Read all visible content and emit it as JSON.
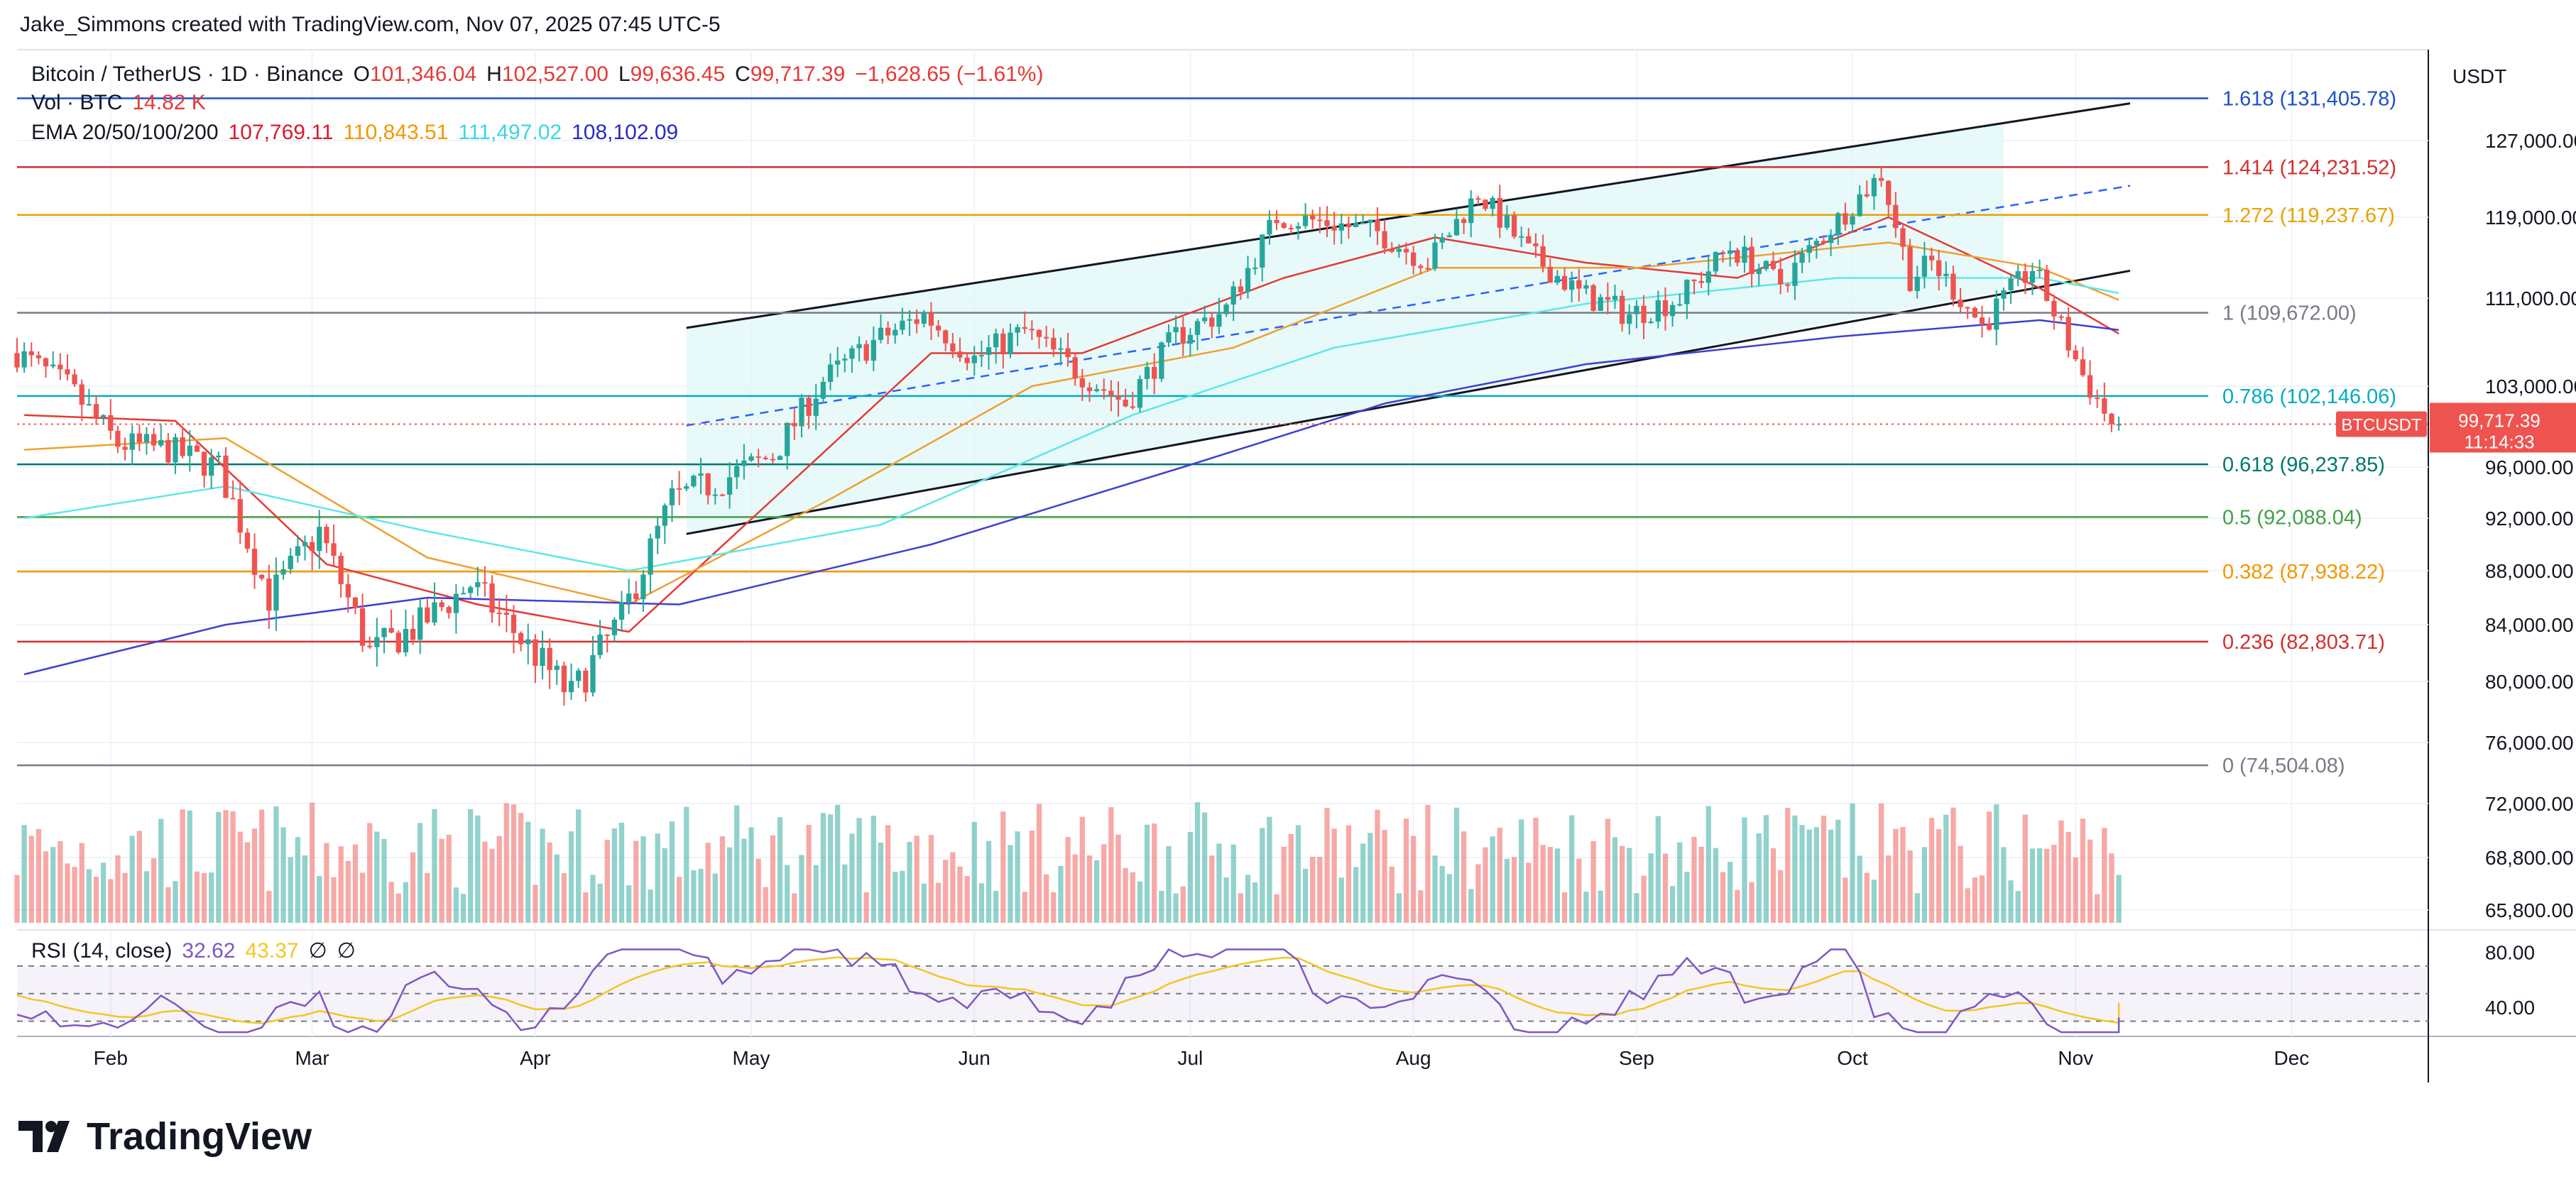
{
  "attribution": "Jake_Simmons created with TradingView.com, Nov 07, 2025 07:45 UTC-5",
  "header": {
    "symbol": "Bitcoin / TetherUS · 1D · Binance",
    "open_label": "O",
    "open": "101,346.04",
    "high_label": "H",
    "high": "102,527.00",
    "low_label": "L",
    "low": "99,636.45",
    "close_label": "C",
    "close": "99,717.39",
    "change": "−1,628.65 (−1.61%)",
    "vol_label": "Vol · BTC",
    "vol": "14.82 K",
    "ema_label": "EMA 20/50/100/200",
    "ema20": "107,769.11",
    "ema50": "110,843.51",
    "ema100": "111,497.02",
    "ema200": "108,102.09"
  },
  "rsi_header": {
    "label": "RSI (14, close)",
    "rsi": "32.62",
    "ma": "43.37",
    "extra1": "∅",
    "extra2": "∅"
  },
  "currency": "USDT",
  "last_price": {
    "ticker": "BTCUSDT",
    "price": "99,717.39",
    "countdown": "11:14:33"
  },
  "brand": "TradingView",
  "colors": {
    "up": "#26a69a",
    "down": "#ef5350",
    "ema20": "#e53935",
    "ema50": "#f0a030",
    "ema100": "#5ce8e8",
    "ema200": "#3f3fd0",
    "channel": "#e0f7f7"
  },
  "chart_data": {
    "type": "candlestick",
    "title": "Bitcoin / TetherUS · 1D · Binance",
    "x_ticks": [
      "Feb",
      "Mar",
      "Apr",
      "May",
      "Jun",
      "Jul",
      "Aug",
      "Sep",
      "Oct",
      "Nov",
      "Dec"
    ],
    "y_ticks": [
      "127,000.00",
      "119,000.00",
      "111,000.00",
      "103,000.00",
      "96,000.00",
      "92,000.00",
      "88,000.00",
      "84,000.00",
      "80,000.00",
      "76,000.00",
      "72,000.00",
      "68,800.00",
      "65,800.00"
    ],
    "y_ticks_values": [
      127000,
      119000,
      111000,
      103000,
      96000,
      92000,
      88000,
      84000,
      80000,
      76000,
      72000,
      68800,
      65800
    ],
    "x_range": [
      "2025-01-19",
      "2025-12-20"
    ],
    "fib_levels": [
      {
        "ratio": "1.618",
        "price": 131405.78,
        "label": "1.618 (131,405.78)",
        "color": "#1e50c8"
      },
      {
        "ratio": "1.414",
        "price": 124231.52,
        "label": "1.414 (124,231.52)",
        "color": "#d32f2f"
      },
      {
        "ratio": "1.272",
        "price": 119237.67,
        "label": "1.272 (119,237.67)",
        "color": "#e6a400"
      },
      {
        "ratio": "1",
        "price": 109672.0,
        "label": "1 (109,672.00)",
        "color": "#787b86"
      },
      {
        "ratio": "0.786",
        "price": 102146.06,
        "label": "0.786 (102,146.06)",
        "color": "#00acc1"
      },
      {
        "ratio": "0.618",
        "price": 96237.85,
        "label": "0.618 (96,237.85)",
        "color": "#00796b"
      },
      {
        "ratio": "0.5",
        "price": 92088.04,
        "label": "0.5 (92,088.04)",
        "color": "#43a047"
      },
      {
        "ratio": "0.382",
        "price": 87938.22,
        "label": "0.382 (87,938.22)",
        "color": "#f29800"
      },
      {
        "ratio": "0.236",
        "price": 82803.71,
        "label": "0.236 (82,803.71)",
        "color": "#d32f2f"
      },
      {
        "ratio": "0",
        "price": 74504.08,
        "label": "0 (74,504.08)",
        "color": "#787b86"
      }
    ],
    "channel": {
      "start_date": "2025-04-22",
      "end_date": "2025-10-22",
      "upper_start": 108300,
      "upper_end": 128900,
      "lower_start": 90800,
      "lower_end": 111700,
      "mid_start": 99600,
      "mid_end": 120300
    },
    "price_path": [
      [
        "2025-01-20",
        106000
      ],
      [
        "2025-01-27",
        103000
      ],
      [
        "2025-02-03",
        98000
      ],
      [
        "2025-02-10",
        97500
      ],
      [
        "2025-02-17",
        96000
      ],
      [
        "2025-02-24",
        86000
      ],
      [
        "2025-03-03",
        91000
      ],
      [
        "2025-03-10",
        82000
      ],
      [
        "2025-03-17",
        84000
      ],
      [
        "2025-03-24",
        87000
      ],
      [
        "2025-03-31",
        83000
      ],
      [
        "2025-04-07",
        79000
      ],
      [
        "2025-04-14",
        84500
      ],
      [
        "2025-04-21",
        93500
      ],
      [
        "2025-04-28",
        95000
      ],
      [
        "2025-05-05",
        97000
      ],
      [
        "2025-05-12",
        103500
      ],
      [
        "2025-05-19",
        107000
      ],
      [
        "2025-05-26",
        109500
      ],
      [
        "2025-06-02",
        105500
      ],
      [
        "2025-06-09",
        108000
      ],
      [
        "2025-06-16",
        104500
      ],
      [
        "2025-06-23",
        101500
      ],
      [
        "2025-06-30",
        107500
      ],
      [
        "2025-07-07",
        110000
      ],
      [
        "2025-07-14",
        119000
      ],
      [
        "2025-07-21",
        118500
      ],
      [
        "2025-07-28",
        117500
      ],
      [
        "2025-08-04",
        114500
      ],
      [
        "2025-08-11",
        121500
      ],
      [
        "2025-08-18",
        115500
      ],
      [
        "2025-08-25",
        111500
      ],
      [
        "2025-09-01",
        109500
      ],
      [
        "2025-09-08",
        111000
      ],
      [
        "2025-09-15",
        116000
      ],
      [
        "2025-09-22",
        112500
      ],
      [
        "2025-09-29",
        118000
      ],
      [
        "2025-10-06",
        123500
      ],
      [
        "2025-10-10",
        113000
      ],
      [
        "2025-10-13",
        114500
      ],
      [
        "2025-10-20",
        108500
      ],
      [
        "2025-10-27",
        114000
      ],
      [
        "2025-11-03",
        104000
      ],
      [
        "2025-11-07",
        99717
      ]
    ],
    "ema20_path": [
      [
        "2025-01-20",
        100500
      ],
      [
        "2025-02-10",
        100000
      ],
      [
        "2025-03-03",
        88500
      ],
      [
        "2025-03-24",
        85500
      ],
      [
        "2025-04-14",
        83500
      ],
      [
        "2025-05-05",
        94000
      ],
      [
        "2025-05-26",
        106000
      ],
      [
        "2025-06-16",
        106000
      ],
      [
        "2025-07-14",
        113000
      ],
      [
        "2025-08-04",
        117000
      ],
      [
        "2025-08-25",
        114500
      ],
      [
        "2025-09-15",
        113000
      ],
      [
        "2025-10-06",
        119000
      ],
      [
        "2025-10-27",
        112000
      ],
      [
        "2025-11-07",
        107769
      ]
    ],
    "ema50_path": [
      [
        "2025-01-20",
        97500
      ],
      [
        "2025-02-17",
        98500
      ],
      [
        "2025-03-17",
        89000
      ],
      [
        "2025-04-14",
        85500
      ],
      [
        "2025-05-12",
        93500
      ],
      [
        "2025-06-09",
        103000
      ],
      [
        "2025-07-07",
        106500
      ],
      [
        "2025-08-04",
        114000
      ],
      [
        "2025-09-01",
        114000
      ],
      [
        "2025-10-06",
        116500
      ],
      [
        "2025-10-27",
        114000
      ],
      [
        "2025-11-07",
        110844
      ]
    ],
    "ema100_path": [
      [
        "2025-01-20",
        92000
      ],
      [
        "2025-02-17",
        94500
      ],
      [
        "2025-03-17",
        91000
      ],
      [
        "2025-04-14",
        88000
      ],
      [
        "2025-05-19",
        91500
      ],
      [
        "2025-06-23",
        100500
      ],
      [
        "2025-07-21",
        106500
      ],
      [
        "2025-08-25",
        110500
      ],
      [
        "2025-09-29",
        113000
      ],
      [
        "2025-10-27",
        113000
      ],
      [
        "2025-11-07",
        111497
      ]
    ],
    "ema200_path": [
      [
        "2025-01-20",
        80500
      ],
      [
        "2025-02-17",
        84000
      ],
      [
        "2025-03-17",
        86000
      ],
      [
        "2025-04-21",
        85500
      ],
      [
        "2025-05-26",
        90000
      ],
      [
        "2025-06-30",
        96000
      ],
      [
        "2025-07-28",
        101500
      ],
      [
        "2025-08-25",
        105000
      ],
      [
        "2025-09-29",
        107500
      ],
      [
        "2025-10-27",
        109000
      ],
      [
        "2025-11-07",
        108102
      ]
    ],
    "rsi": {
      "value": 32.62,
      "ma": 43.37,
      "ticks": [
        "80.00",
        "40.00"
      ],
      "upper": 70,
      "lower": 30,
      "middle": 50
    }
  }
}
